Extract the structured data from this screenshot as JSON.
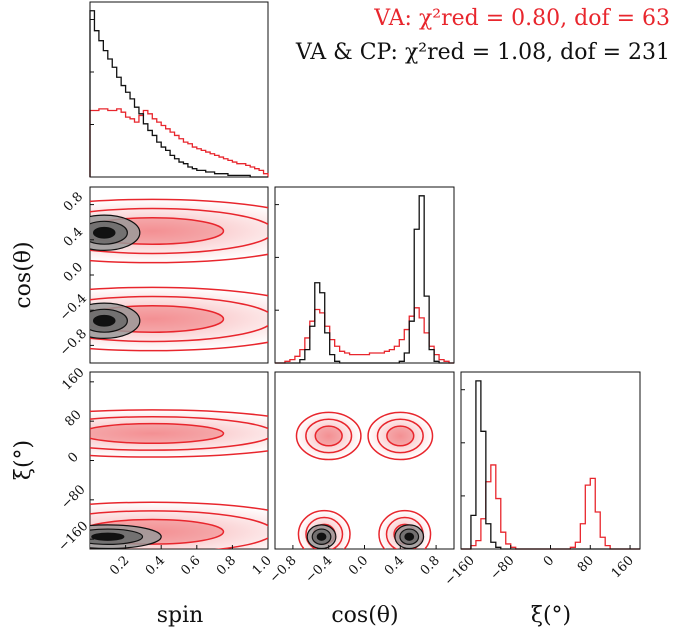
{
  "legend": {
    "va": "VA: χ²red = 0.80, dof = 63",
    "vacp": "VA & CP: χ²red = 1.08, dof = 231"
  },
  "colors": {
    "va": "#e8262d",
    "vacp": "#111111"
  },
  "chart_data": {
    "type": "corner",
    "params": [
      {
        "label": "spin",
        "range": [
          0,
          1.0
        ],
        "ticks": [
          "0.2",
          "0.4",
          "0.6",
          "0.8",
          "1.0"
        ],
        "tick_values": [
          0.2,
          0.4,
          0.6,
          0.8,
          1.0
        ]
      },
      {
        "label": "cos(θ)",
        "range": [
          -1.0,
          1.0
        ],
        "ticks": [
          "−0.8",
          "−0.4",
          "0.0",
          "0.4",
          "0.8"
        ],
        "tick_values": [
          -0.8,
          -0.4,
          0.0,
          0.4,
          0.8
        ]
      },
      {
        "label": "ξ(°)",
        "range": [
          -180,
          180
        ],
        "ticks": [
          "−160",
          "−80",
          "0",
          "80",
          "160"
        ],
        "tick_values": [
          -160,
          -80,
          0,
          80,
          160
        ]
      }
    ],
    "series": [
      {
        "name": "VA",
        "chi2_red": 0.8,
        "dof": 63
      },
      {
        "name": "VA & CP",
        "chi2_red": 1.08,
        "dof": 231
      }
    ],
    "histograms": {
      "spin": {
        "VA": [
          0.4,
          0.4,
          0.41,
          0.41,
          0.4,
          0.4,
          0.41,
          0.39,
          0.36,
          0.35,
          0.33,
          0.37,
          0.4,
          0.38,
          0.35,
          0.33,
          0.31,
          0.29,
          0.27,
          0.25,
          0.23,
          0.21,
          0.2,
          0.18,
          0.17,
          0.16,
          0.15,
          0.14,
          0.13,
          0.12,
          0.11,
          0.1,
          0.09,
          0.08,
          0.08,
          0.07,
          0.06,
          0.05,
          0.04,
          0.02
        ],
        "VA & CP": [
          1.0,
          0.88,
          0.82,
          0.76,
          0.71,
          0.66,
          0.6,
          0.55,
          0.51,
          0.47,
          0.42,
          0.38,
          0.32,
          0.28,
          0.25,
          0.21,
          0.18,
          0.16,
          0.13,
          0.11,
          0.09,
          0.08,
          0.06,
          0.05,
          0.04,
          0.04,
          0.03,
          0.03,
          0.02,
          0.02,
          0.02,
          0.01,
          0.01,
          0.01,
          0.01,
          0.01,
          0.0,
          0.0,
          0.0,
          0.0
        ]
      },
      "cos(θ)": {
        "VA": [
          0.0,
          0.0,
          0.01,
          0.02,
          0.04,
          0.08,
          0.15,
          0.25,
          0.32,
          0.3,
          0.22,
          0.14,
          0.1,
          0.07,
          0.06,
          0.05,
          0.05,
          0.05,
          0.05,
          0.06,
          0.06,
          0.06,
          0.07,
          0.08,
          0.1,
          0.14,
          0.2,
          0.28,
          0.33,
          0.27,
          0.18,
          0.1,
          0.05,
          0.02,
          0.01,
          0.0
        ],
        "VA & CP": [
          0.0,
          0.0,
          0.0,
          0.0,
          0.0,
          0.02,
          0.08,
          0.22,
          0.48,
          0.42,
          0.18,
          0.05,
          0.01,
          0.0,
          0.0,
          0.0,
          0.0,
          0.0,
          0.0,
          0.0,
          0.0,
          0.0,
          0.0,
          0.0,
          0.0,
          0.01,
          0.06,
          0.25,
          0.8,
          1.0,
          0.4,
          0.08,
          0.01,
          0.0,
          0.0,
          0.0
        ]
      },
      "ξ(°)": {
        "VA": [
          0.0,
          0.0,
          0.02,
          0.05,
          0.18,
          0.4,
          0.5,
          0.3,
          0.1,
          0.03,
          0.01,
          0.0,
          0.0,
          0.0,
          0.0,
          0.0,
          0.0,
          0.0,
          0.0,
          0.0,
          0.0,
          0.0,
          0.01,
          0.04,
          0.15,
          0.38,
          0.42,
          0.22,
          0.07,
          0.02,
          0.0,
          0.0,
          0.0,
          0.0,
          0.0,
          0.0
        ],
        "VA & CP": [
          0.0,
          0.0,
          0.2,
          1.0,
          0.7,
          0.15,
          0.04,
          0.01,
          0.0,
          0.0,
          0.0,
          0.0,
          0.0,
          0.0,
          0.0,
          0.0,
          0.0,
          0.0,
          0.0,
          0.0,
          0.0,
          0.0,
          0.0,
          0.0,
          0.0,
          0.0,
          0.0,
          0.0,
          0.0,
          0.0,
          0.0,
          0.0,
          0.0,
          0.0,
          0.0,
          0.0
        ]
      }
    },
    "contours_2d": {
      "spin_vs_cos": {
        "VA & CP": [
          {
            "cx": 0.08,
            "cy": 0.48,
            "sx": 0.1,
            "sy": 0.1
          },
          {
            "cx": 0.08,
            "cy": -0.52,
            "sx": 0.1,
            "sy": 0.1
          }
        ],
        "VA": [
          {
            "cx": 0.35,
            "cy": 0.5,
            "sx": 0.4,
            "sy": 0.15
          },
          {
            "cx": 0.35,
            "cy": -0.5,
            "sx": 0.4,
            "sy": 0.15
          }
        ]
      },
      "spin_vs_xi": {
        "VA & CP": [
          {
            "cx": 0.1,
            "cy": -155,
            "sx": 0.15,
            "sy": 12
          }
        ],
        "VA": [
          {
            "cx": 0.35,
            "cy": 55,
            "sx": 0.4,
            "sy": 20
          },
          {
            "cx": 0.35,
            "cy": -145,
            "sx": 0.4,
            "sy": 25
          }
        ]
      },
      "cos_vs_xi": {
        "VA & CP": [
          {
            "cx": -0.48,
            "cy": -155,
            "sx": 0.08,
            "sy": 12
          },
          {
            "cx": 0.5,
            "cy": -155,
            "sx": 0.08,
            "sy": 12
          }
        ],
        "VA": [
          {
            "cx": -0.4,
            "cy": 50,
            "sx": 0.15,
            "sy": 20
          },
          {
            "cx": 0.4,
            "cy": 50,
            "sx": 0.15,
            "sy": 20
          },
          {
            "cx": -0.45,
            "cy": -150,
            "sx": 0.12,
            "sy": 20
          },
          {
            "cx": 0.45,
            "cy": -150,
            "sx": 0.12,
            "sy": 20
          }
        ]
      }
    }
  }
}
